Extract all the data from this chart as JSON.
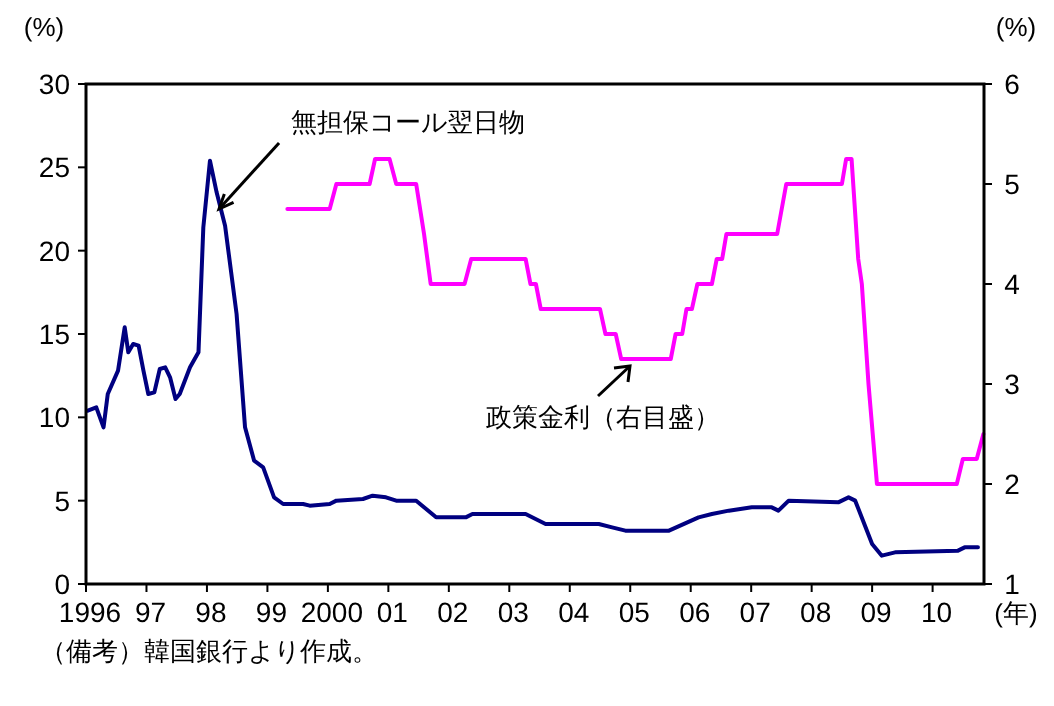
{
  "chart_data": {
    "type": "line",
    "ylabel": "(%)",
    "y2label": "(%)",
    "xlabel": "(年)",
    "xlim": [
      1996,
      2010.85
    ],
    "ylim": [
      0,
      30
    ],
    "y2lim": [
      1,
      6
    ],
    "xticks": [
      {
        "value": 1996,
        "label": "1996"
      },
      {
        "value": 1997,
        "label": "97"
      },
      {
        "value": 1998,
        "label": "98"
      },
      {
        "value": 1999,
        "label": "99"
      },
      {
        "value": 2000,
        "label": "2000"
      },
      {
        "value": 2001,
        "label": "01"
      },
      {
        "value": 2002,
        "label": "02"
      },
      {
        "value": 2003,
        "label": "03"
      },
      {
        "value": 2004,
        "label": "04"
      },
      {
        "value": 2005,
        "label": "05"
      },
      {
        "value": 2006,
        "label": "06"
      },
      {
        "value": 2007,
        "label": "07"
      },
      {
        "value": 2008,
        "label": "08"
      },
      {
        "value": 2009,
        "label": "09"
      },
      {
        "value": 2010,
        "label": "10"
      }
    ],
    "yticks": [
      0,
      5,
      10,
      15,
      20,
      25,
      30
    ],
    "y2ticks": [
      1,
      2,
      3,
      4,
      5,
      6
    ],
    "series": [
      {
        "color": "#000080",
        "x": [
          1996.03,
          1996.17,
          1996.29,
          1996.36,
          1996.53,
          1996.64,
          1996.7,
          1996.78,
          1996.87,
          1996.95,
          1997.03,
          1997.13,
          1997.22,
          1997.31,
          1997.39,
          1997.48,
          1997.55,
          1997.72,
          1997.86,
          1997.94,
          1998.05,
          1998.16,
          1998.3,
          1998.49,
          1998.63,
          1998.78,
          1998.93,
          1999.11,
          1999.26,
          1999.59,
          1999.7,
          2000.03,
          2000.14,
          2000.58,
          2000.74,
          2000.96,
          2001.13,
          2001.46,
          2001.79,
          2002.28,
          2002.39,
          2002.83,
          2003.27,
          2003.6,
          2004.48,
          2004.7,
          2004.92,
          2005.64,
          2006.13,
          2006.35,
          2006.63,
          2007.01,
          2007.34,
          2007.45,
          2007.62,
          2008.44,
          2008.61,
          2008.72,
          2009.0,
          2009.16,
          2009.38,
          2010.42,
          2010.53,
          2010.75
        ],
        "values": [
          10.4,
          10.6,
          9.4,
          11.4,
          12.8,
          15.4,
          13.9,
          14.4,
          14.3,
          12.8,
          11.4,
          11.5,
          12.9,
          13.0,
          12.4,
          11.1,
          11.4,
          13.0,
          13.9,
          21.4,
          25.4,
          23.5,
          21.5,
          16.2,
          9.4,
          7.4,
          7.0,
          5.2,
          4.8,
          4.8,
          4.7,
          4.8,
          5.0,
          5.1,
          5.3,
          5.2,
          5.0,
          5.0,
          4.0,
          4.0,
          4.2,
          4.2,
          4.2,
          3.6,
          3.6,
          3.4,
          3.2,
          3.2,
          4.0,
          4.2,
          4.4,
          4.6,
          4.6,
          4.4,
          5.0,
          4.9,
          5.2,
          5.0,
          2.4,
          1.7,
          1.9,
          2.0,
          2.2,
          2.2
        ]
      },
      {
        "color": "#ff00ff",
        "axis": "y2",
        "x": [
          1999.33,
          2000.03,
          2000.14,
          2000.69,
          2000.78,
          2001.02,
          2001.13,
          2001.46,
          2001.59,
          2001.7,
          2002.26,
          2002.37,
          2003.27,
          2003.35,
          2003.44,
          2003.52,
          2004.5,
          2004.59,
          2004.76,
          2004.85,
          2005.67,
          2005.75,
          2005.86,
          2005.93,
          2006.02,
          2006.11,
          2006.35,
          2006.43,
          2006.52,
          2006.59,
          2007.43,
          2007.58,
          2008.5,
          2008.57,
          2008.66,
          2008.77,
          2008.83,
          2008.94,
          2009.08,
          2010.4,
          2010.5,
          2010.73,
          2010.84
        ],
        "values": [
          4.75,
          4.75,
          5.0,
          5.0,
          5.25,
          5.25,
          5.0,
          5.0,
          4.5,
          4.0,
          4.0,
          4.25,
          4.25,
          4.0,
          4.0,
          3.75,
          3.75,
          3.5,
          3.5,
          3.25,
          3.25,
          3.5,
          3.5,
          3.75,
          3.75,
          4.0,
          4.0,
          4.25,
          4.25,
          4.5,
          4.5,
          5.0,
          5.0,
          5.25,
          5.25,
          4.25,
          4.0,
          3.0,
          2.0,
          2.0,
          2.25,
          2.25,
          2.5
        ]
      }
    ],
    "annotations": [
      {
        "text": "無担保コール翌日物",
        "x": 1998.2,
        "y": 22.5
      },
      "政策金利（右目盛）",
      "（備考）韓国銀行より作成。"
    ],
    "grid": false,
    "marker": "none",
    "line_style": "solid"
  }
}
